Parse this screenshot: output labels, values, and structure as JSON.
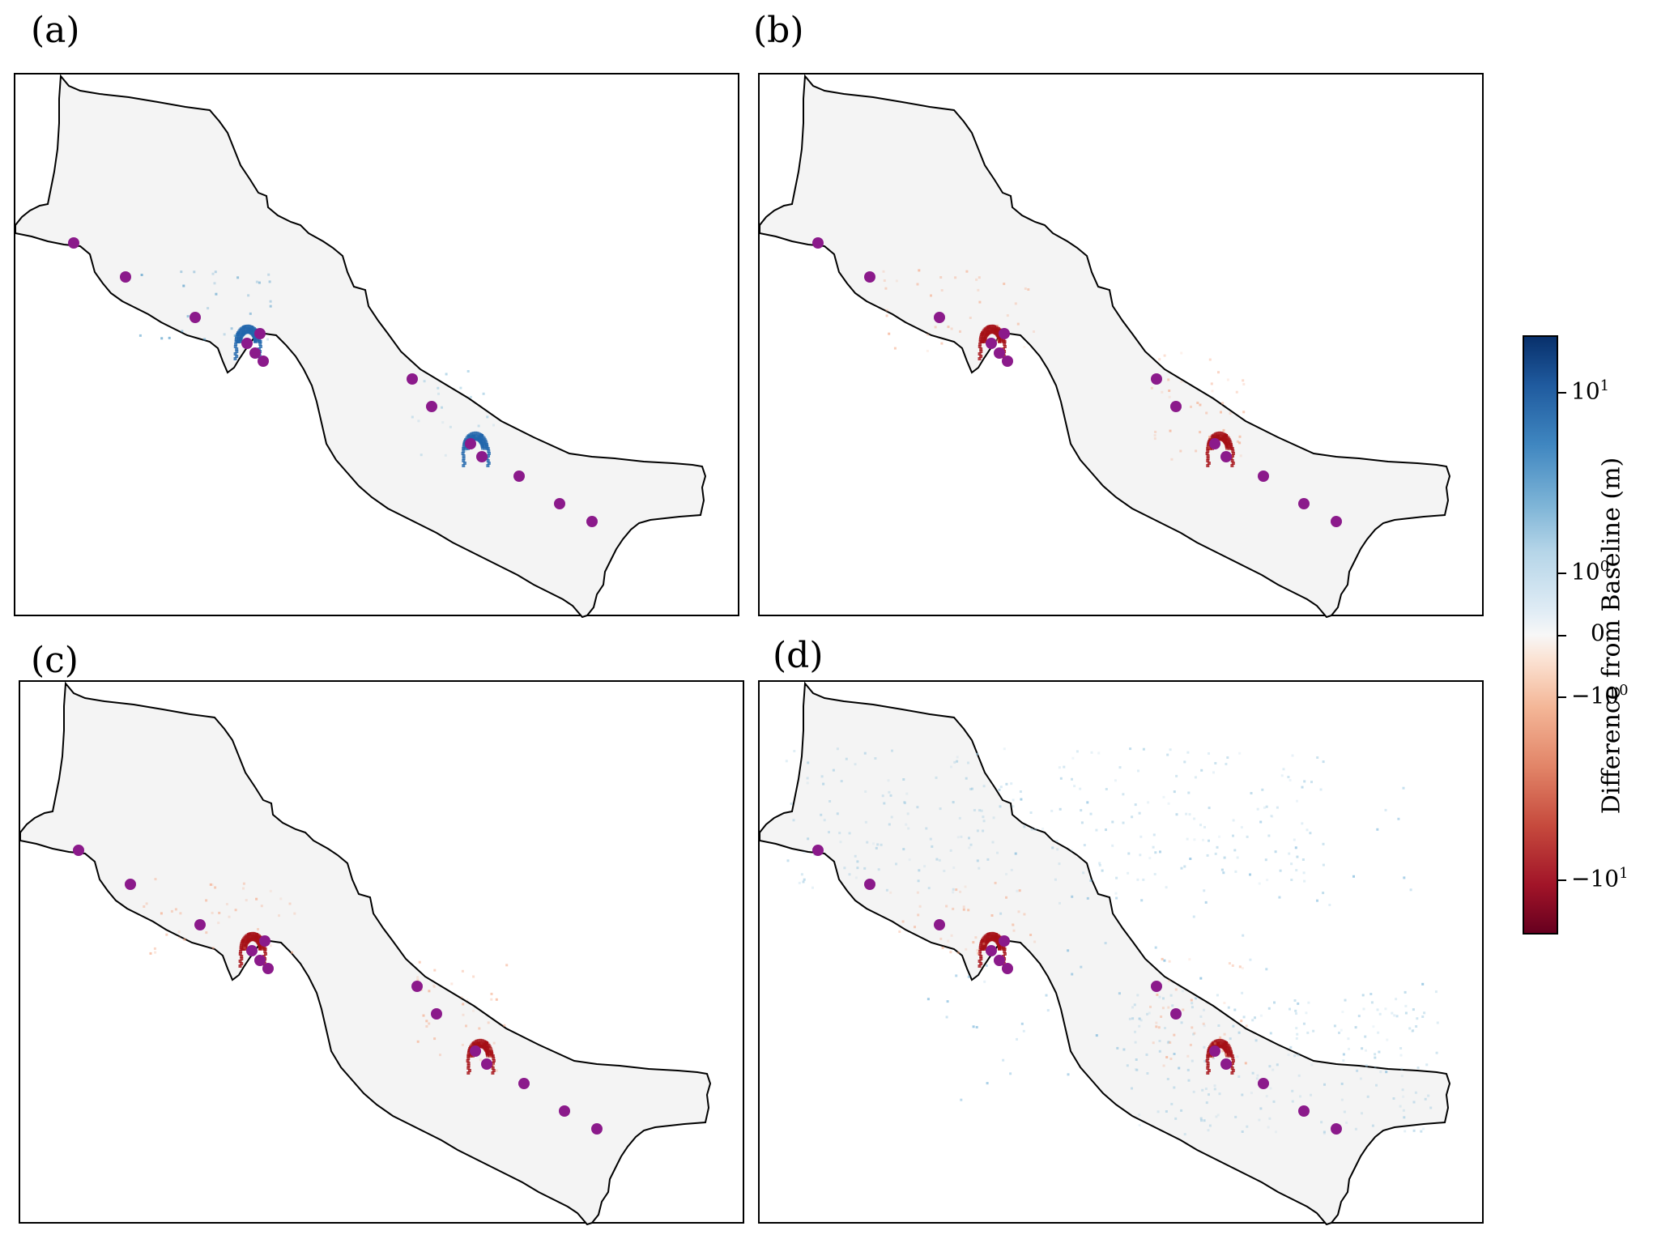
{
  "panels": [
    {
      "label": "(a)",
      "scenario": "increase"
    },
    {
      "label": "(b)",
      "scenario": "decrease"
    },
    {
      "label": "(c)",
      "scenario": "decrease"
    },
    {
      "label": "(d)",
      "scenario": "mixed"
    }
  ],
  "colorbar": {
    "title": "Difference from Baseline (m)",
    "scale": "symlog",
    "ticks": [
      {
        "value": 10,
        "label": "10",
        "sup": "1"
      },
      {
        "value": 1,
        "label": "10",
        "sup": "0"
      },
      {
        "value": 0,
        "label": "0",
        "sup": ""
      },
      {
        "value": -1,
        "label": "−10",
        "sup": "0"
      },
      {
        "value": -10,
        "label": "−10",
        "sup": "1"
      }
    ],
    "colors": {
      "max": "#08306b",
      "zero": "#f7f7f7",
      "min": "#67001f"
    }
  },
  "colors": {
    "region_fill": "#f4f4f4",
    "outline": "#000000",
    "marker": "#8b1a8b",
    "increase": "#2166ac",
    "decrease": "#a50f15"
  },
  "markers_count": 14
}
